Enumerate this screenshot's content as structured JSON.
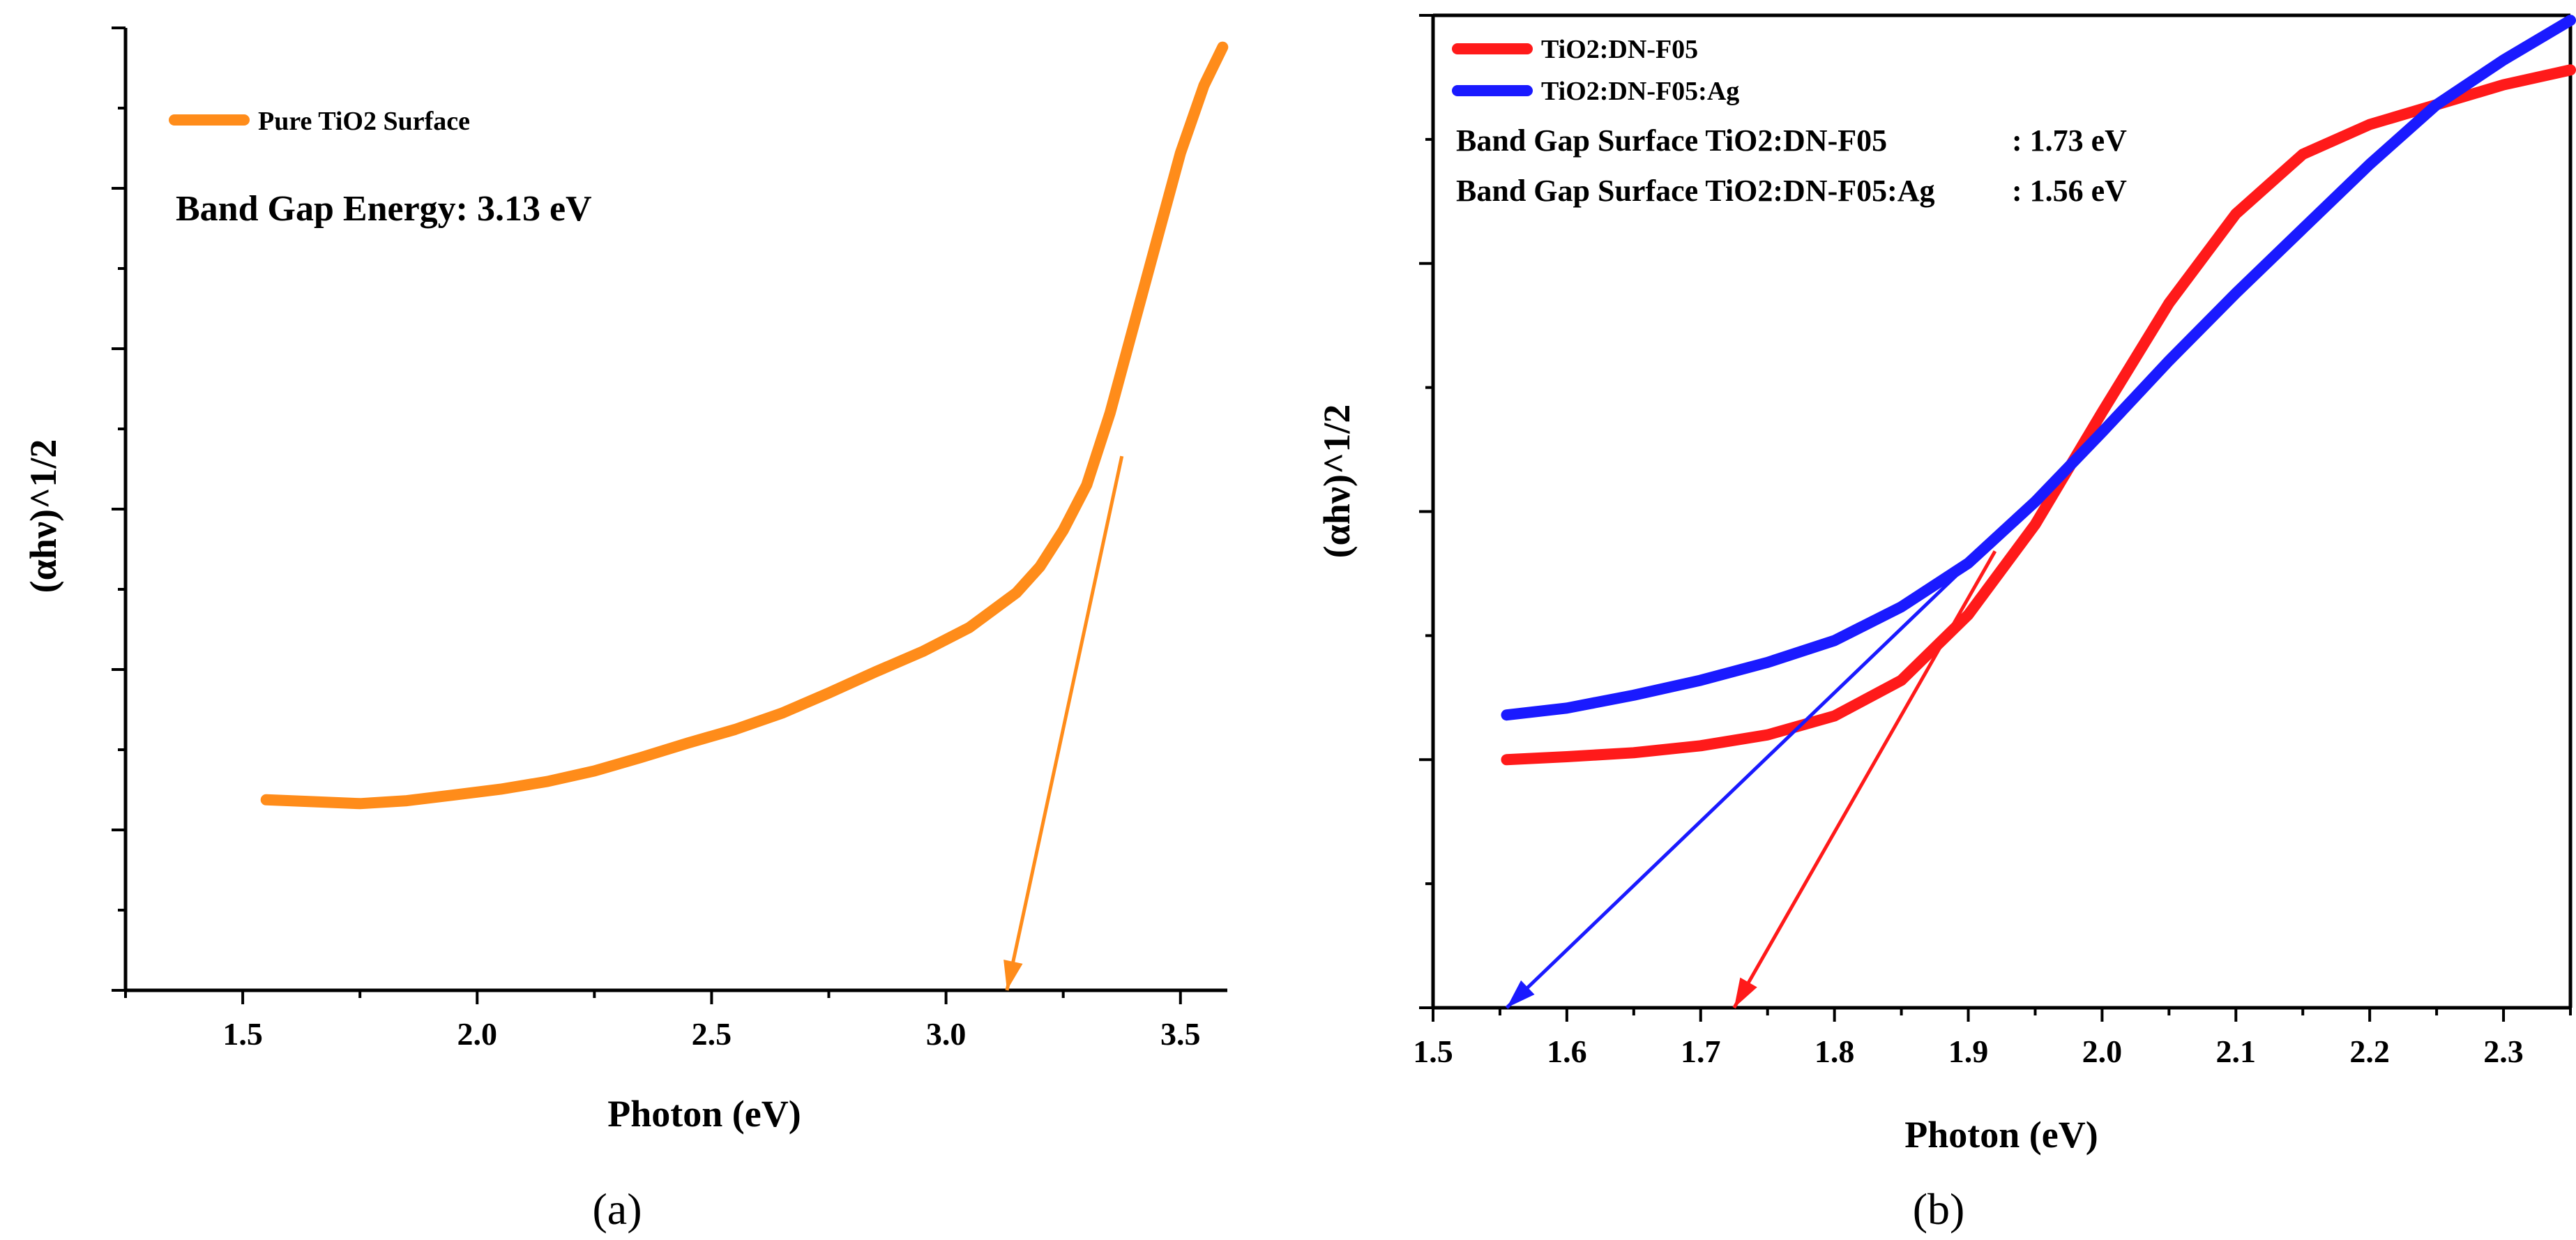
{
  "chart_data": [
    {
      "type": "line",
      "panel_label": "(a)",
      "xlabel": "Photon (eV)",
      "ylabel": "(αhν)^1/2",
      "xlim": [
        1.25,
        3.6
      ],
      "ylim": [
        0,
        1
      ],
      "x_ticks": [
        1.5,
        2.0,
        2.5,
        3.0,
        3.5
      ],
      "x_tick_labels": [
        "1.5",
        "2.0",
        "2.5",
        "3.0",
        "3.5"
      ],
      "y_tick_labels_shown": false,
      "legend_position": "top-left",
      "series": [
        {
          "name": "Pure TiO2 Surface",
          "color": "#ff8c1a",
          "x": [
            1.55,
            1.65,
            1.75,
            1.85,
            1.95,
            2.05,
            2.15,
            2.25,
            2.35,
            2.45,
            2.55,
            2.65,
            2.75,
            2.85,
            2.95,
            3.05,
            3.15,
            3.2,
            3.25,
            3.3,
            3.35,
            3.4,
            3.45,
            3.5,
            3.55,
            3.59
          ],
          "y": [
            0.198,
            0.196,
            0.194,
            0.197,
            0.203,
            0.209,
            0.217,
            0.228,
            0.242,
            0.257,
            0.271,
            0.288,
            0.309,
            0.331,
            0.352,
            0.377,
            0.413,
            0.44,
            0.478,
            0.525,
            0.6,
            0.69,
            0.78,
            0.87,
            0.94,
            0.98
          ]
        }
      ],
      "tangent": {
        "color": "#ff8c1a",
        "from": [
          3.375,
          0.555
        ],
        "to": [
          3.13,
          0.0
        ]
      },
      "annotation": "Band Gap Energy: 3.13 eV"
    },
    {
      "type": "line",
      "panel_label": "(b)",
      "xlabel": "Photon (eV)",
      "ylabel": "(αhν)^1/2",
      "xlim": [
        1.5,
        2.35
      ],
      "ylim": [
        0,
        1
      ],
      "x_ticks": [
        1.5,
        1.6,
        1.7,
        1.8,
        1.9,
        2.0,
        2.1,
        2.2,
        2.3
      ],
      "x_tick_labels": [
        "1.5",
        "1.6",
        "1.7",
        "1.8",
        "1.9",
        "2.0",
        "2.1",
        "2.2",
        "2.3"
      ],
      "y_tick_labels_shown": false,
      "legend_position": "top-left",
      "series": [
        {
          "name": "TiO2:DN-F05",
          "color": "#ff1a1a",
          "x": [
            1.555,
            1.6,
            1.65,
            1.7,
            1.75,
            1.8,
            1.85,
            1.9,
            1.95,
            2.0,
            2.05,
            2.1,
            2.15,
            2.2,
            2.25,
            2.3,
            2.35
          ],
          "y": [
            0.25,
            0.253,
            0.257,
            0.264,
            0.275,
            0.294,
            0.33,
            0.396,
            0.487,
            0.6,
            0.71,
            0.8,
            0.86,
            0.89,
            0.91,
            0.93,
            0.945
          ]
        },
        {
          "name": "TiO2:DN-F05:Ag",
          "color": "#1a1aff",
          "x": [
            1.555,
            1.6,
            1.65,
            1.7,
            1.75,
            1.8,
            1.85,
            1.9,
            1.95,
            2.0,
            2.05,
            2.1,
            2.15,
            2.2,
            2.25,
            2.3,
            2.35
          ],
          "y": [
            0.295,
            0.302,
            0.315,
            0.33,
            0.348,
            0.37,
            0.404,
            0.448,
            0.51,
            0.58,
            0.652,
            0.72,
            0.785,
            0.85,
            0.91,
            0.955,
            0.995
          ]
        }
      ],
      "tangents": [
        {
          "color": "#ff1a1a",
          "from": [
            1.92,
            0.46
          ],
          "to": [
            1.725,
            0.0
          ]
        },
        {
          "color": "#1a1aff",
          "from": [
            1.91,
            0.46
          ],
          "to": [
            1.555,
            0.0
          ]
        }
      ],
      "annotations": [
        {
          "label": "Band Gap Surface TiO2:DN-F05",
          "value": ": 1.73 eV"
        },
        {
          "label": "Band Gap Surface TiO2:DN-F05:Ag",
          "value": ": 1.56 eV"
        }
      ]
    }
  ]
}
